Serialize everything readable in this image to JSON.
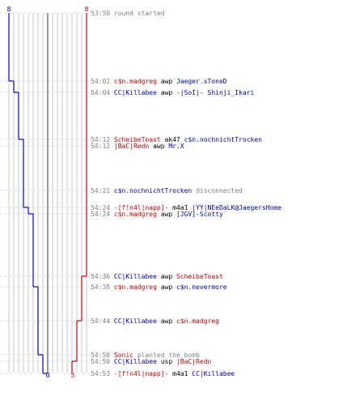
{
  "colors": {
    "blue": "#0000cc",
    "red": "#cc0000",
    "gray": "#808080",
    "guide": "#bdbdbd",
    "center": "#707070"
  },
  "counts": {
    "blue_start": "8",
    "red_start": "8",
    "blue_end": "0",
    "red_end": "5"
  },
  "steps": {
    "blue": [
      8,
      7,
      6,
      5,
      4,
      3,
      2,
      1,
      0
    ],
    "red": [
      8,
      7,
      6,
      5
    ]
  },
  "events": [
    {
      "time": "53:50",
      "parts": [
        {
          "t": "round started",
          "c": "gray"
        }
      ]
    },
    {
      "time": "54:02",
      "parts": [
        {
          "t": "c$n.madgreg",
          "c": "red"
        },
        {
          "t": "awp",
          "c": "black"
        },
        {
          "t": "Jaeger.sToneD",
          "c": "blue"
        }
      ]
    },
    {
      "time": "54:04",
      "parts": [
        {
          "t": "CC|Killabee",
          "c": "blue"
        },
        {
          "t": "awp",
          "c": "black"
        },
        {
          "t": "-|SoI|- Shinji_Ikari",
          "c": "blue"
        }
      ]
    },
    {
      "time": "54:12",
      "parts": [
        {
          "t": "ScheibeToast",
          "c": "red"
        },
        {
          "t": "ak47",
          "c": "black"
        },
        {
          "t": "c$n.nochnichtTrocken",
          "c": "blue"
        }
      ]
    },
    {
      "time": "54:12",
      "parts": [
        {
          "t": "|BaC|Redn",
          "c": "red"
        },
        {
          "t": "awp",
          "c": "black"
        },
        {
          "t": "Mr.X",
          "c": "blue"
        }
      ]
    },
    {
      "time": "54:21",
      "parts": [
        {
          "t": "c$n.nochnichtTrocken",
          "c": "blue"
        },
        {
          "t": "disconnected",
          "c": "gray"
        }
      ]
    },
    {
      "time": "54:24",
      "parts": [
        {
          "t": "-[f!n4l|napp]-",
          "c": "red"
        },
        {
          "t": "m4a1",
          "c": "black"
        },
        {
          "t": "|YY|NEeDaLK@JaegersHome",
          "c": "blue"
        }
      ]
    },
    {
      "time": "54:24",
      "parts": [
        {
          "t": "c$n.madgreg",
          "c": "red"
        },
        {
          "t": "awp",
          "c": "black"
        },
        {
          "t": "[JGV]-Scotty",
          "c": "blue"
        }
      ]
    },
    {
      "time": "54:36",
      "parts": [
        {
          "t": "CC|Killabee",
          "c": "blue"
        },
        {
          "t": "awp",
          "c": "black"
        },
        {
          "t": "ScheibeToast",
          "c": "red"
        }
      ]
    },
    {
      "time": "54:38",
      "parts": [
        {
          "t": "c$n.madgreg",
          "c": "red"
        },
        {
          "t": "awp",
          "c": "black"
        },
        {
          "t": "c$n.nevermore",
          "c": "blue"
        }
      ]
    },
    {
      "time": "54:44",
      "parts": [
        {
          "t": "CC|Killabee",
          "c": "blue"
        },
        {
          "t": "awp",
          "c": "black"
        },
        {
          "t": "c$n.madgreg",
          "c": "red"
        }
      ]
    },
    {
      "time": "54:50",
      "parts": [
        {
          "t": "Sonic",
          "c": "red"
        },
        {
          "t": "planted the bomb",
          "c": "gray"
        }
      ]
    },
    {
      "time": "54:50",
      "parts": [
        {
          "t": "CC|Killabee",
          "c": "blue"
        },
        {
          "t": "usp",
          "c": "black"
        },
        {
          "t": "|BaC|Redn",
          "c": "red"
        }
      ]
    },
    {
      "time": "54:53",
      "parts": [
        {
          "t": "-[f!n4l|napp]-",
          "c": "red"
        },
        {
          "t": "m4a1",
          "c": "black"
        },
        {
          "t": "CC|Killabee",
          "c": "blue"
        }
      ]
    }
  ]
}
